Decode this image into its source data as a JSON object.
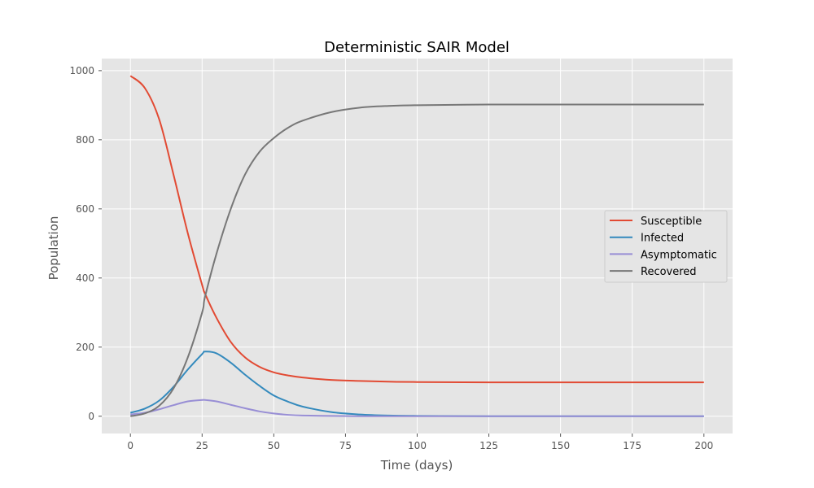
{
  "chart_data": {
    "type": "line",
    "title": "Deterministic SAIR Model",
    "xlabel": "Time (days)",
    "ylabel": "Population",
    "xlim": [
      -10,
      210
    ],
    "ylim": [
      -50,
      1035
    ],
    "xticks": [
      0,
      25,
      50,
      75,
      100,
      125,
      150,
      175,
      200
    ],
    "yticks": [
      0,
      200,
      400,
      600,
      800,
      1000
    ],
    "grid": true,
    "legend_position": "center-right",
    "x": [
      0,
      5,
      10,
      15,
      20,
      25,
      26,
      30,
      35,
      40,
      45,
      50,
      55,
      60,
      70,
      80,
      90,
      100,
      125,
      150,
      175,
      200
    ],
    "series": [
      {
        "name": "Susceptible",
        "color": "#e24a33",
        "values": [
          985,
          950,
          860,
          700,
          530,
          380,
          355,
          285,
          215,
          170,
          143,
          127,
          118,
          112,
          105,
          102,
          100,
          99,
          98,
          98,
          98,
          98
        ]
      },
      {
        "name": "Infected",
        "color": "#348abd",
        "values": [
          10,
          22,
          45,
          85,
          135,
          180,
          187,
          182,
          155,
          120,
          88,
          60,
          42,
          28,
          12,
          5,
          2,
          1,
          0,
          0,
          0,
          0
        ]
      },
      {
        "name": "Asymptomatic",
        "color": "#988ed5",
        "values": [
          5,
          10,
          20,
          32,
          43,
          47,
          47,
          43,
          33,
          23,
          14,
          8,
          4,
          2,
          1,
          0,
          0,
          0,
          0,
          0,
          0,
          0
        ]
      },
      {
        "name": "Recovered",
        "color": "#777777",
        "values": [
          0,
          8,
          30,
          80,
          170,
          300,
          345,
          470,
          600,
          700,
          765,
          805,
          835,
          855,
          880,
          893,
          898,
          900,
          902,
          902,
          902,
          902
        ]
      }
    ]
  }
}
